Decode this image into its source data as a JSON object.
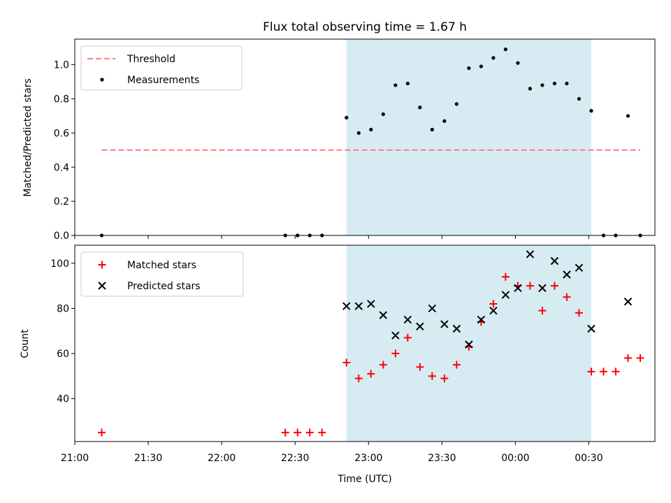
{
  "chart_data": [
    {
      "type": "scatter",
      "title": "Flux total observing time = 1.67 h",
      "ylabel": "Matched/Predicted stars",
      "xlabel": "",
      "xlim": [
        "21:00",
        "00:57"
      ],
      "ylim": [
        0,
        1.15
      ],
      "yticks": [
        0.0,
        0.2,
        0.4,
        0.6,
        0.8,
        1.0
      ],
      "ytick_labels": [
        "0.0",
        "0.2",
        "0.4",
        "0.6",
        "0.8",
        "1.0"
      ],
      "legend_position": "top-left",
      "shaded_interval": [
        "22:51",
        "00:31"
      ],
      "shade_color": "#add8e6",
      "series": [
        {
          "name": "Threshold",
          "kind": "dashed-line",
          "color": "#ff7f7f",
          "x": [
            "21:11",
            "00:51"
          ],
          "y": [
            0.5,
            0.5
          ]
        },
        {
          "name": "Measurements",
          "kind": "points",
          "color": "#000000",
          "x": [
            "21:11",
            "22:26",
            "22:31",
            "22:36",
            "22:41",
            "22:51",
            "22:56",
            "23:01",
            "23:06",
            "23:11",
            "23:16",
            "23:21",
            "23:26",
            "23:31",
            "23:36",
            "23:41",
            "23:46",
            "23:51",
            "23:56",
            "00:01",
            "00:06",
            "00:11",
            "00:16",
            "00:21",
            "00:26",
            "00:31",
            "00:36",
            "00:41",
            "00:46",
            "00:51"
          ],
          "y": [
            0,
            0,
            0,
            0,
            0,
            0.69,
            0.6,
            0.62,
            0.71,
            0.88,
            0.89,
            0.75,
            0.62,
            0.67,
            0.77,
            0.98,
            0.99,
            1.04,
            1.09,
            1.01,
            0.86,
            0.88,
            0.89,
            0.89,
            0.8,
            0.73,
            0,
            0,
            0.7,
            0
          ]
        }
      ]
    },
    {
      "type": "scatter",
      "title": "",
      "xlabel": "Time (UTC)",
      "ylabel": "Count",
      "xlim": [
        "21:00",
        "00:57"
      ],
      "ylim": [
        21,
        108
      ],
      "yticks": [
        40,
        60,
        80,
        100
      ],
      "ytick_labels": [
        "40",
        "60",
        "80",
        "100"
      ],
      "xticks": [
        "21:00",
        "21:30",
        "22:00",
        "22:30",
        "23:00",
        "23:30",
        "00:00",
        "00:30"
      ],
      "xtick_labels": [
        "21:00",
        "21:30",
        "22:00",
        "22:30",
        "23:00",
        "23:30",
        "00:00",
        "00:30"
      ],
      "legend_position": "top-left",
      "shaded_interval": [
        "22:51",
        "00:31"
      ],
      "shade_color": "#add8e6",
      "series": [
        {
          "name": "Matched stars",
          "marker": "plus",
          "color": "#ff0000",
          "x": [
            "21:11",
            "22:26",
            "22:31",
            "22:36",
            "22:41",
            "22:51",
            "22:56",
            "23:01",
            "23:06",
            "23:11",
            "23:16",
            "23:21",
            "23:26",
            "23:31",
            "23:36",
            "23:41",
            "23:46",
            "23:51",
            "23:56",
            "00:01",
            "00:06",
            "00:11",
            "00:16",
            "00:21",
            "00:26",
            "00:31",
            "00:36",
            "00:41",
            "00:46",
            "00:51"
          ],
          "y": [
            25,
            25,
            25,
            25,
            25,
            56,
            49,
            51,
            55,
            60,
            67,
            54,
            50,
            49,
            55,
            63,
            74,
            82,
            94,
            90,
            90,
            79,
            90,
            85,
            78,
            52,
            52,
            52,
            58,
            58
          ]
        },
        {
          "name": "Predicted stars",
          "marker": "x",
          "color": "#000000",
          "x": [
            "22:51",
            "22:56",
            "23:01",
            "23:06",
            "23:11",
            "23:16",
            "23:21",
            "23:26",
            "23:31",
            "23:36",
            "23:41",
            "23:46",
            "23:51",
            "23:56",
            "00:01",
            "00:06",
            "00:11",
            "00:16",
            "00:21",
            "00:26",
            "00:31",
            "00:46"
          ],
          "y": [
            81,
            81,
            82,
            77,
            68,
            75,
            72,
            80,
            73,
            71,
            64,
            75,
            79,
            86,
            89,
            104,
            89,
            101,
            95,
            98,
            71,
            83
          ]
        }
      ]
    }
  ]
}
